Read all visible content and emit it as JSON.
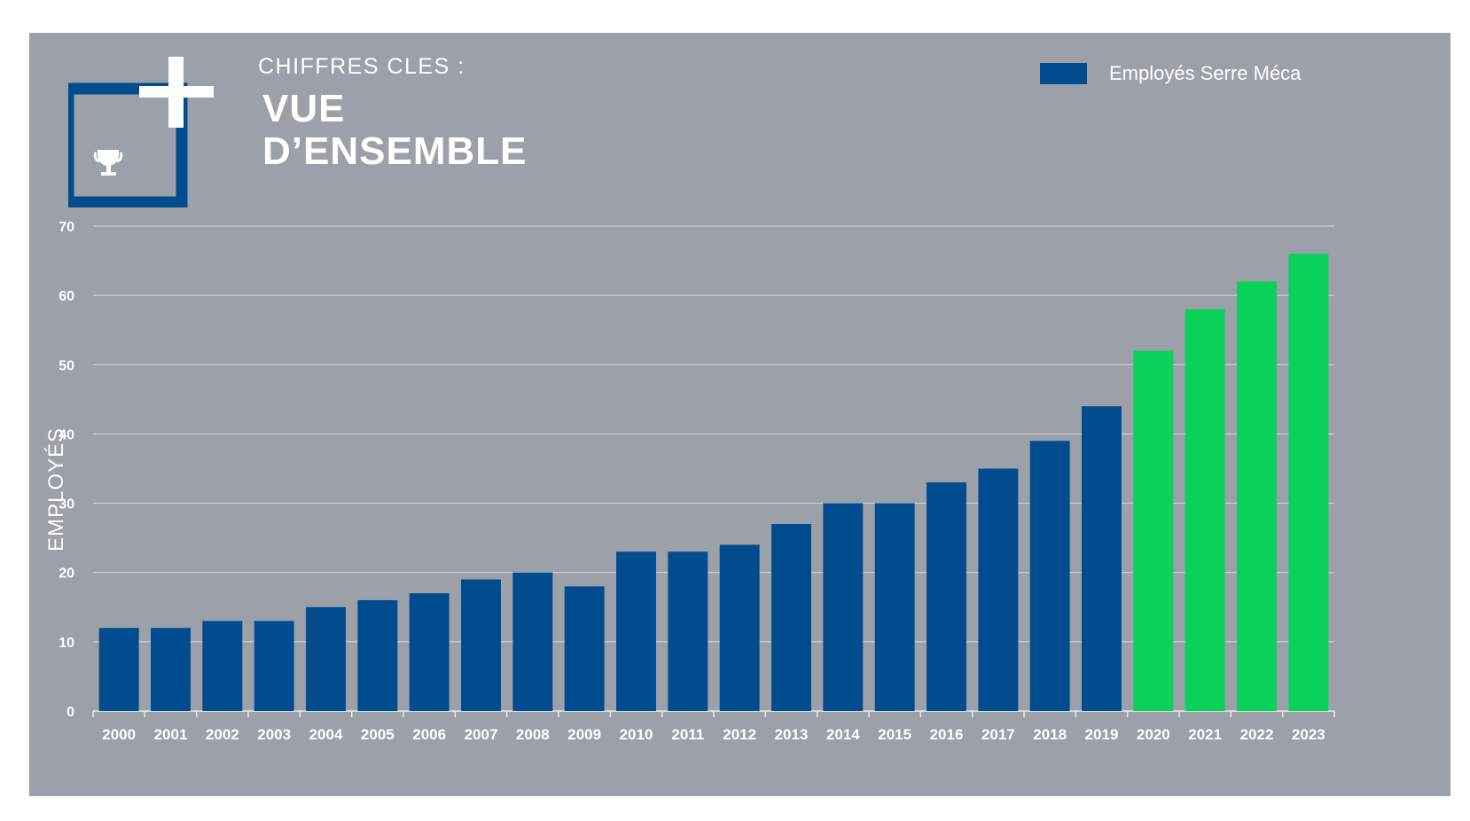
{
  "header": {
    "kicker": "CHIFFRES CLES :",
    "title_line1": "VUE",
    "title_line2": "D’ENSEMBLE",
    "logo_icon": "trophy-icon"
  },
  "colors": {
    "panel_bg": "#9ba0a9",
    "bar_blue": "#004c8f",
    "bar_green": "#09d15a",
    "text": "#ffffff",
    "grid": "#d5d8dd"
  },
  "chart_data": {
    "type": "bar",
    "title": "",
    "xlabel": "",
    "ylabel": "EMPLOYÉS",
    "ylim": [
      0,
      70
    ],
    "yticks": [
      0,
      10,
      20,
      30,
      40,
      50,
      60,
      70
    ],
    "grid": true,
    "legend": {
      "position": "top-right"
    },
    "categories": [
      "2000",
      "2001",
      "2002",
      "2003",
      "2004",
      "2005",
      "2006",
      "2007",
      "2008",
      "2009",
      "2010",
      "2011",
      "2012",
      "2013",
      "2014",
      "2015",
      "2016",
      "2017",
      "2018",
      "2019",
      "2020",
      "2021",
      "2022",
      "2023"
    ],
    "series": [
      {
        "name": "Employés Serre Méca",
        "values": [
          12,
          12,
          13,
          13,
          15,
          16,
          17,
          19,
          20,
          18,
          23,
          23,
          24,
          27,
          30,
          30,
          33,
          35,
          39,
          44,
          52,
          58,
          62,
          66
        ],
        "colors": [
          "#004c8f",
          "#004c8f",
          "#004c8f",
          "#004c8f",
          "#004c8f",
          "#004c8f",
          "#004c8f",
          "#004c8f",
          "#004c8f",
          "#004c8f",
          "#004c8f",
          "#004c8f",
          "#004c8f",
          "#004c8f",
          "#004c8f",
          "#004c8f",
          "#004c8f",
          "#004c8f",
          "#004c8f",
          "#004c8f",
          "#09d15a",
          "#09d15a",
          "#09d15a",
          "#09d15a"
        ]
      }
    ]
  }
}
